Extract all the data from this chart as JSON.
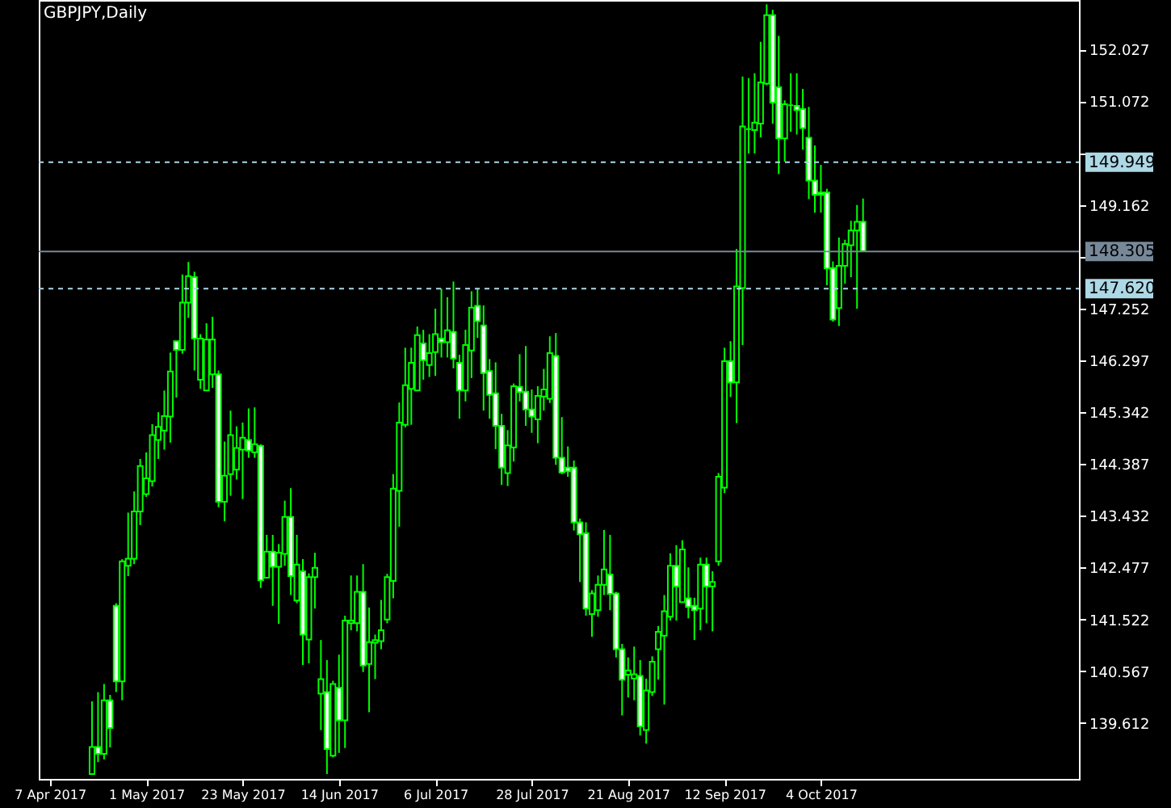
{
  "chart_data": {
    "type": "candlestick",
    "title": "GBPJPY,Daily",
    "categories": [
      "7 Apr 2017",
      null,
      null,
      null,
      null,
      null,
      null,
      null,
      null,
      null,
      null,
      null,
      null,
      null,
      null,
      null,
      "1 May 2017",
      null,
      null,
      null,
      null,
      null,
      null,
      null,
      null,
      null,
      null,
      null,
      null,
      null,
      null,
      null,
      "23 May 2017",
      null,
      null,
      null,
      null,
      null,
      null,
      null,
      null,
      null,
      null,
      null,
      null,
      null,
      null,
      null,
      "14 Jun 2017",
      null,
      null,
      null,
      null,
      null,
      null,
      null,
      null,
      null,
      null,
      null,
      null,
      null,
      null,
      null,
      "6 Jul 2017",
      null,
      null,
      null,
      null,
      null,
      null,
      null,
      null,
      null,
      null,
      null,
      null,
      null,
      null,
      null,
      "28 Jul 2017",
      null,
      null,
      null,
      null,
      null,
      null,
      null,
      null,
      null,
      null,
      null,
      null,
      null,
      null,
      null,
      "21 Aug 2017",
      null,
      null,
      null,
      null,
      null,
      null,
      null,
      null,
      null,
      null,
      null,
      null,
      null,
      null,
      null,
      "12 Sep 2017",
      null,
      null,
      null,
      null,
      null,
      null,
      null,
      null,
      null,
      null,
      null,
      null,
      null,
      null,
      null,
      "4 Oct 2017",
      null,
      null,
      null,
      null,
      null,
      null,
      null,
      null,
      null,
      null,
      null,
      null,
      null,
      null,
      null,
      null,
      null,
      null,
      null,
      null,
      null,
      null,
      null,
      null,
      null,
      null,
      null,
      null,
      null,
      null,
      null,
      null,
      null,
      null,
      null,
      null,
      null,
      null,
      null,
      null,
      null
    ],
    "ohlc": [
      null,
      null,
      null,
      null,
      null,
      null,
      null,
      [
        138.67,
        140.01,
        138.67,
        139.17
      ],
      [
        139.17,
        140.18,
        138.89,
        139.04
      ],
      [
        139.04,
        140.33,
        138.94,
        140.03
      ],
      [
        140.03,
        140.13,
        139.16,
        139.52
      ],
      [
        141.77,
        141.82,
        140.18,
        140.38
      ],
      [
        140.38,
        142.63,
        140.03,
        142.59
      ],
      [
        142.51,
        143.49,
        142.32,
        142.64
      ],
      [
        142.64,
        143.88,
        142.54,
        143.51
      ],
      [
        143.51,
        144.48,
        143.26,
        144.35
      ],
      [
        143.83,
        144.6,
        143.78,
        144.12
      ],
      [
        144.07,
        145.12,
        143.97,
        144.92
      ],
      [
        144.83,
        145.34,
        144.48,
        145.07
      ],
      [
        145.0,
        145.74,
        144.65,
        145.27
      ],
      [
        145.26,
        146.44,
        144.78,
        146.09
      ],
      [
        146.65,
        146.65,
        145.61,
        146.49
      ],
      [
        146.49,
        147.88,
        146.42,
        147.36
      ],
      [
        147.36,
        148.11,
        147.08,
        147.85
      ],
      [
        147.83,
        147.93,
        146.11,
        146.7
      ],
      [
        145.94,
        146.78,
        145.77,
        146.7
      ],
      [
        145.74,
        146.98,
        145.74,
        146.68
      ],
      [
        146.04,
        147.1,
        145.79,
        146.68
      ],
      [
        146.04,
        146.11,
        143.59,
        143.69
      ],
      [
        143.69,
        144.8,
        143.33,
        144.17
      ],
      [
        144.2,
        145.37,
        143.8,
        144.92
      ],
      [
        144.28,
        145.08,
        144.1,
        144.68
      ],
      [
        144.65,
        145.15,
        143.74,
        144.87
      ],
      [
        144.83,
        145.41,
        144.5,
        144.63
      ],
      [
        144.6,
        145.43,
        144.5,
        144.75
      ],
      [
        144.72,
        144.75,
        142.1,
        142.24
      ],
      [
        142.29,
        143.08,
        142.29,
        142.77
      ],
      [
        142.77,
        143.08,
        141.77,
        142.49
      ],
      [
        142.49,
        142.91,
        141.44,
        142.75
      ],
      [
        142.73,
        143.71,
        142.51,
        143.41
      ],
      [
        143.41,
        143.94,
        141.97,
        142.32
      ],
      [
        141.87,
        143.08,
        141.82,
        142.53
      ],
      [
        142.41,
        142.63,
        140.68,
        141.24
      ],
      [
        141.15,
        142.37,
        140.71,
        142.3
      ],
      [
        142.3,
        142.75,
        141.72,
        142.47
      ],
      [
        140.15,
        141.14,
        139.48,
        140.42
      ],
      [
        140.18,
        140.77,
        138.67,
        139.13
      ],
      [
        139.01,
        140.39,
        138.98,
        140.33
      ],
      [
        140.26,
        140.87,
        139.06,
        139.66
      ],
      [
        139.66,
        141.59,
        139.15,
        141.5
      ],
      [
        141.45,
        142.33,
        141.32,
        141.5
      ],
      [
        141.45,
        142.33,
        141.3,
        142.03
      ],
      [
        142.03,
        142.54,
        140.55,
        140.67
      ],
      [
        140.7,
        141.74,
        139.81,
        141.1
      ],
      [
        141.09,
        141.24,
        140.42,
        141.14
      ],
      [
        141.12,
        141.88,
        140.97,
        141.32
      ],
      [
        141.52,
        142.36,
        141.45,
        142.3
      ],
      [
        142.23,
        144.2,
        141.91,
        143.93
      ],
      [
        143.89,
        145.52,
        143.23,
        145.15
      ],
      [
        145.11,
        146.53,
        145.06,
        145.84
      ],
      [
        145.77,
        146.53,
        145.11,
        146.25
      ],
      [
        145.74,
        146.92,
        145.74,
        146.76
      ],
      [
        146.61,
        146.86,
        145.94,
        146.3
      ],
      [
        146.21,
        146.78,
        145.99,
        146.43
      ],
      [
        146.45,
        147.25,
        146.01,
        146.78
      ],
      [
        146.7,
        147.62,
        146.35,
        146.63
      ],
      [
        146.63,
        147.46,
        146.35,
        146.85
      ],
      [
        146.82,
        147.75,
        146.15,
        146.33
      ],
      [
        146.25,
        146.4,
        145.22,
        145.74
      ],
      [
        145.74,
        146.86,
        145.54,
        146.58
      ],
      [
        146.48,
        147.57,
        145.97,
        147.27
      ],
      [
        147.3,
        147.62,
        146.71,
        147.02
      ],
      [
        146.94,
        147.31,
        145.37,
        146.06
      ],
      [
        146.1,
        146.32,
        145.22,
        145.66
      ],
      [
        145.69,
        146.26,
        144.66,
        145.09
      ],
      [
        145.09,
        145.31,
        144.0,
        144.32
      ],
      [
        144.22,
        145.01,
        143.98,
        144.73
      ],
      [
        144.69,
        145.87,
        144.43,
        145.82
      ],
      [
        145.81,
        146.41,
        145.54,
        145.71
      ],
      [
        145.72,
        146.56,
        145.09,
        145.39
      ],
      [
        145.39,
        145.76,
        144.96,
        145.26
      ],
      [
        145.21,
        145.82,
        144.77,
        145.64
      ],
      [
        145.63,
        146.14,
        145.37,
        145.76
      ],
      [
        145.59,
        146.74,
        145.51,
        146.43
      ],
      [
        146.38,
        146.8,
        144.37,
        144.5
      ],
      [
        144.5,
        145.25,
        144.2,
        144.23
      ],
      [
        144.32,
        144.71,
        144.15,
        144.25
      ],
      [
        144.32,
        144.45,
        143.16,
        143.31
      ],
      [
        143.31,
        143.38,
        142.21,
        143.09
      ],
      [
        143.11,
        143.31,
        141.59,
        141.72
      ],
      [
        141.62,
        142.06,
        141.2,
        142.0
      ],
      [
        141.69,
        142.33,
        141.57,
        142.16
      ],
      [
        142.16,
        143.17,
        141.97,
        142.44
      ],
      [
        142.35,
        143.08,
        141.69,
        141.99
      ],
      [
        142.0,
        142.03,
        140.82,
        140.97
      ],
      [
        140.97,
        141.07,
        139.75,
        140.41
      ],
      [
        140.5,
        140.82,
        140.08,
        140.58
      ],
      [
        140.43,
        141.02,
        140.03,
        140.51
      ],
      [
        140.48,
        140.77,
        139.38,
        139.55
      ],
      [
        139.48,
        140.43,
        139.23,
        140.21
      ],
      [
        140.18,
        140.84,
        140.11,
        140.74
      ],
      [
        140.97,
        141.4,
        140.41,
        141.29
      ],
      [
        141.22,
        141.97,
        139.95,
        141.67
      ],
      [
        141.57,
        142.74,
        141.5,
        142.51
      ],
      [
        142.51,
        142.89,
        141.5,
        142.13
      ],
      [
        141.84,
        142.98,
        141.84,
        142.81
      ],
      [
        141.91,
        142.48,
        141.54,
        141.75
      ],
      [
        141.77,
        141.92,
        141.14,
        141.69
      ],
      [
        141.72,
        142.66,
        141.32,
        142.53
      ],
      [
        142.53,
        142.66,
        141.45,
        142.13
      ],
      [
        142.13,
        142.41,
        141.3,
        142.21
      ],
      [
        142.59,
        144.22,
        142.51,
        144.15
      ],
      [
        143.95,
        146.53,
        143.85,
        146.28
      ],
      [
        146.28,
        146.65,
        145.62,
        145.89
      ],
      [
        145.89,
        148.35,
        145.14,
        147.66
      ],
      [
        147.63,
        151.53,
        146.58,
        150.61
      ],
      [
        150.56,
        151.5,
        150.11,
        150.56
      ],
      [
        150.54,
        151.59,
        150.11,
        150.68
      ],
      [
        150.66,
        152.17,
        150.41,
        151.42
      ],
      [
        151.4,
        152.86,
        151.37,
        152.66
      ],
      [
        152.66,
        152.76,
        150.66,
        151.05
      ],
      [
        151.33,
        152.28,
        149.73,
        150.39
      ],
      [
        150.39,
        151.09,
        149.96,
        151.02
      ],
      [
        151.0,
        151.59,
        150.51,
        151.0
      ],
      [
        150.99,
        151.59,
        150.46,
        150.91
      ],
      [
        150.93,
        151.3,
        150.18,
        150.58
      ],
      [
        150.4,
        150.97,
        149.27,
        149.61
      ],
      [
        149.61,
        150.26,
        149.02,
        149.35
      ],
      [
        149.39,
        149.9,
        149.02,
        149.35
      ],
      [
        149.39,
        149.46,
        147.68,
        147.99
      ],
      [
        148.0,
        148.12,
        147.01,
        147.05
      ],
      [
        147.26,
        148.56,
        146.93,
        148.04
      ],
      [
        148.04,
        148.52,
        147.71,
        148.44
      ],
      [
        148.42,
        148.87,
        147.83,
        148.69
      ],
      [
        148.69,
        149.16,
        147.25,
        148.85
      ],
      [
        148.85,
        149.28,
        148.31,
        148.31
      ],
      null,
      null,
      null,
      null,
      null,
      null,
      null,
      null,
      null,
      null,
      null,
      null,
      null,
      null,
      null,
      null,
      null,
      null,
      null,
      null,
      null,
      null,
      null,
      null,
      null,
      null,
      null,
      null,
      null,
      null,
      null,
      null,
      null,
      null
    ],
    "ylim": [
      138.58,
      152.94
    ],
    "yticks": [
      139.612,
      140.567,
      141.522,
      142.477,
      143.432,
      144.387,
      145.342,
      146.297,
      147.252,
      {
        "value": 148.207,
        "label": null
      },
      149.162,
      {
        "value": 150.117,
        "label": null
      },
      151.072,
      152.027
    ],
    "ref_lines": [
      {
        "axis": "y",
        "value": 149.949,
        "label": "149.949",
        "color": "#add8e6",
        "line_style": "dashed"
      },
      {
        "axis": "y",
        "value": 148.305,
        "label": "148.305",
        "color": "#778899",
        "line_style": "solid"
      },
      {
        "axis": "y",
        "value": 147.62,
        "label": "147.620",
        "color": "#add8e6",
        "line_style": "dashed"
      }
    ]
  }
}
